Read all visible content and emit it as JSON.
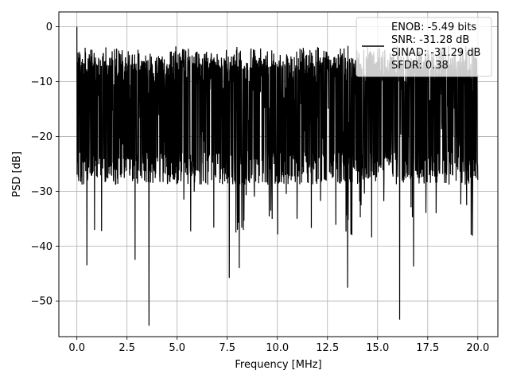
{
  "chart_data": {
    "type": "line",
    "xlabel": "Frequency [MHz]",
    "ylabel": "PSD [dB]",
    "xlim": [
      -0.9,
      21.0
    ],
    "ylim": [
      -56.5,
      2.7
    ],
    "x_ticks": [
      0.0,
      2.5,
      5.0,
      7.5,
      10.0,
      12.5,
      15.0,
      17.5,
      20.0
    ],
    "x_tick_labels": [
      "0.0",
      "2.5",
      "5.0",
      "7.5",
      "10.0",
      "12.5",
      "15.0",
      "17.5",
      "20.0"
    ],
    "y_ticks": [
      0,
      -10,
      -20,
      -30,
      -40,
      -50
    ],
    "y_tick_labels": [
      "0",
      "−10",
      "−20",
      "−30",
      "−40",
      "−50"
    ],
    "grid": true,
    "legend_position": "top-right",
    "line_color": "#000000",
    "series": [
      {
        "x_range": [
          0.0,
          20.0
        ],
        "points": 2048,
        "values_summary": {
          "start_peak": 0.0,
          "typical_upper": -5,
          "typical_lower": -27,
          "deep_notches": [
            {
              "x": 0.5,
              "y": -43.5
            },
            {
              "x": 2.9,
              "y": -42.5
            },
            {
              "x": 3.6,
              "y": -54.5
            },
            {
              "x": 7.6,
              "y": -45.8
            },
            {
              "x": 8.1,
              "y": -44.0
            },
            {
              "x": 13.5,
              "y": -47.6
            },
            {
              "x": 16.1,
              "y": -53.4
            },
            {
              "x": 16.8,
              "y": -43.7
            }
          ]
        }
      }
    ],
    "legend": {
      "lines": [
        "ENOB: -5.49 bits",
        "SNR: -31.28 dB",
        "SINAD: -31.29 dB",
        "SFDR: 0.38"
      ]
    }
  }
}
